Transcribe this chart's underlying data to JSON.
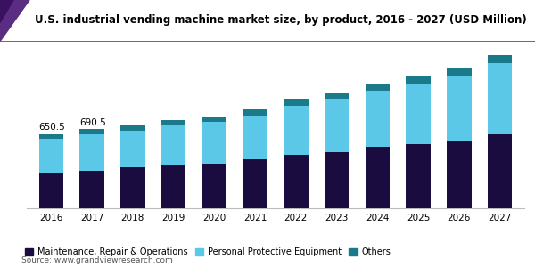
{
  "title": "U.S. industrial vending machine market size, by product, 2016 - 2027 (USD Million)",
  "years": [
    2016,
    2017,
    2018,
    2019,
    2020,
    2021,
    2022,
    2023,
    2024,
    2025,
    2026,
    2027
  ],
  "mro": [
    310,
    330,
    355,
    385,
    390,
    425,
    465,
    495,
    535,
    560,
    595,
    655
  ],
  "ppe": [
    300,
    320,
    325,
    345,
    365,
    385,
    435,
    460,
    495,
    535,
    570,
    615
  ],
  "others": [
    40,
    40,
    42,
    45,
    50,
    52,
    55,
    58,
    60,
    63,
    66,
    72
  ],
  "annotations": {
    "2016": "650.5",
    "2017": "690.5"
  },
  "colors": {
    "mro": "#1b0c40",
    "ppe": "#5bc8e8",
    "others": "#1b7a8a",
    "title_bg_left": "#3d1a6e",
    "title_bg_right": "#7b3fa0",
    "title_text": "#000000"
  },
  "legend_labels": [
    "Maintenance, Repair & Operations",
    "Personal Protective Equipment",
    "Others"
  ],
  "source": "Source: www.grandviewresearch.com",
  "ylim": [
    0,
    1450
  ]
}
